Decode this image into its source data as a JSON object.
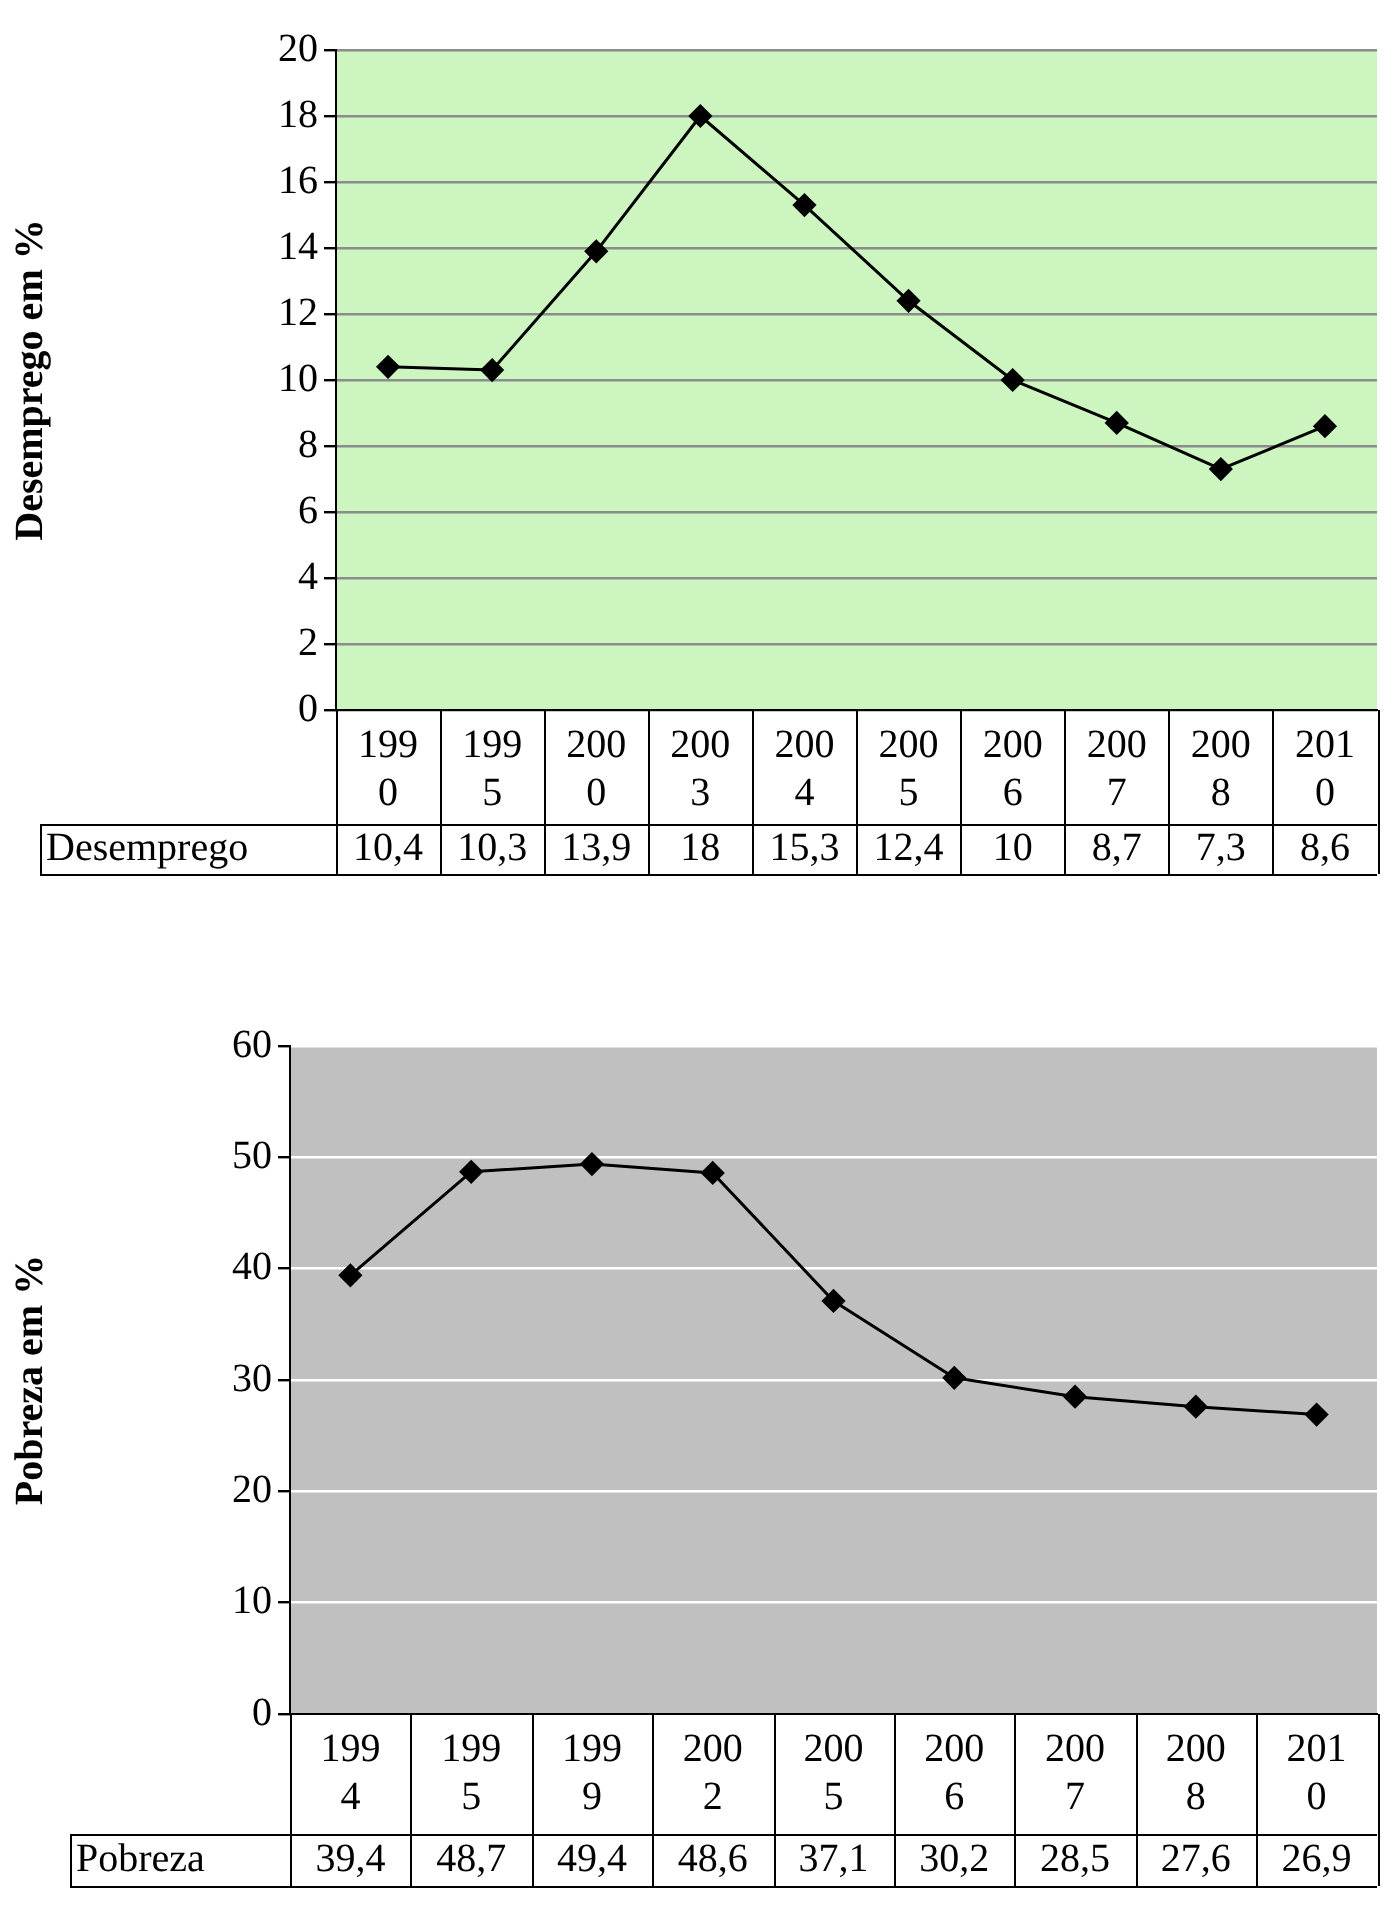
{
  "chart_data": [
    {
      "type": "line",
      "ylabel": "Desemprego em %",
      "categories": [
        "1990",
        "1995",
        "2000",
        "2003",
        "2004",
        "2005",
        "2006",
        "2007",
        "2008",
        "2010"
      ],
      "series": [
        {
          "name": "Desemprego",
          "color": "#000000",
          "values": [
            10.4,
            10.3,
            13.9,
            18,
            15.3,
            12.4,
            10,
            8.7,
            7.3,
            8.6
          ],
          "value_labels": [
            "10,4",
            "10,3",
            "13,9",
            "18",
            "15,3",
            "12,4",
            "10",
            "8,7",
            "7,3",
            "8,6"
          ]
        }
      ],
      "ylim": [
        0,
        20
      ],
      "yticks": [
        0,
        2,
        4,
        6,
        8,
        10,
        12,
        14,
        16,
        18,
        20
      ],
      "grid": "y",
      "legend": "bottom",
      "marker": "diamond"
    },
    {
      "type": "line",
      "ylabel": "Pobreza em %",
      "categories": [
        "1994",
        "1995",
        "1999",
        "2002",
        "2005",
        "2006",
        "2007",
        "2008",
        "2010"
      ],
      "series": [
        {
          "name": "Pobreza",
          "color": "#000000",
          "values": [
            39.4,
            48.7,
            49.4,
            48.6,
            37.1,
            30.2,
            28.5,
            27.6,
            26.9
          ],
          "value_labels": [
            "39,4",
            "48,7",
            "49,4",
            "48,6",
            "37,1",
            "30,2",
            "28,5",
            "27,6",
            "26,9"
          ]
        }
      ],
      "ylim": [
        0,
        60
      ],
      "yticks": [
        0,
        10,
        20,
        30,
        40,
        50,
        60
      ],
      "grid": "y",
      "legend": "bottom",
      "marker": "diamond"
    }
  ]
}
